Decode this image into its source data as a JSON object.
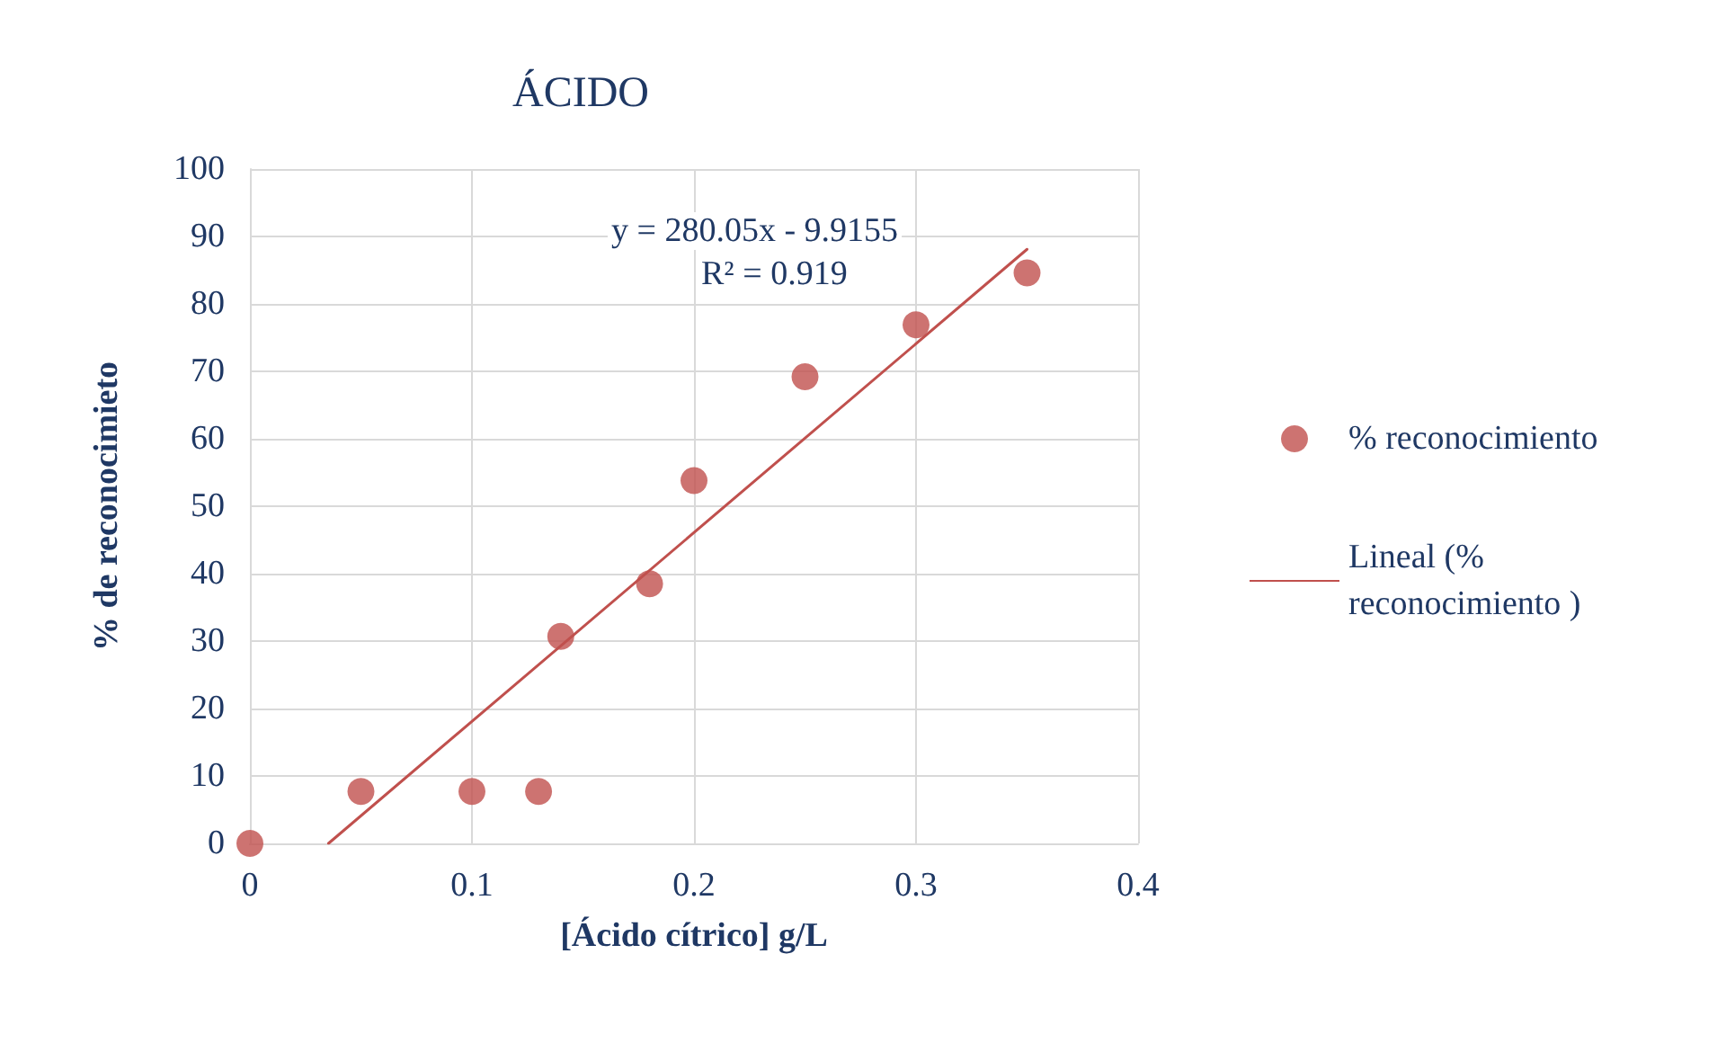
{
  "chart_data": {
    "type": "scatter",
    "title": "ÁCIDO",
    "xlabel": "[Ácido cítrico] g/L",
    "ylabel": "% de reconocimieto",
    "annotations": [
      "y = 280.05x - 9.9155",
      "R² = 0.919"
    ],
    "x": [
      0,
      0.05,
      0.1,
      0.13,
      0.14,
      0.18,
      0.2,
      0.25,
      0.3,
      0.35
    ],
    "series": [
      {
        "name": "% reconocimiento",
        "color": "#c0504d",
        "values": [
          0,
          7.7,
          7.7,
          7.7,
          30.7,
          38.5,
          53.8,
          69.2,
          76.9,
          84.6
        ],
        "marker": "circle"
      },
      {
        "name": "Lineal (% reconocimiento )",
        "type": "line",
        "color": "#c0504d",
        "x": [
          0.0354,
          0.35
        ],
        "values": [
          0,
          88.1
        ],
        "marker": "none",
        "line_style": "solid"
      }
    ],
    "xlim": [
      0,
      0.4
    ],
    "xticks": [
      0,
      0.1,
      0.2,
      0.3,
      0.4
    ],
    "ylim": [
      0,
      100
    ],
    "yticks": [
      0,
      10,
      20,
      30,
      40,
      50,
      60,
      70,
      80,
      90,
      100
    ],
    "grid": true,
    "legend": "right"
  }
}
